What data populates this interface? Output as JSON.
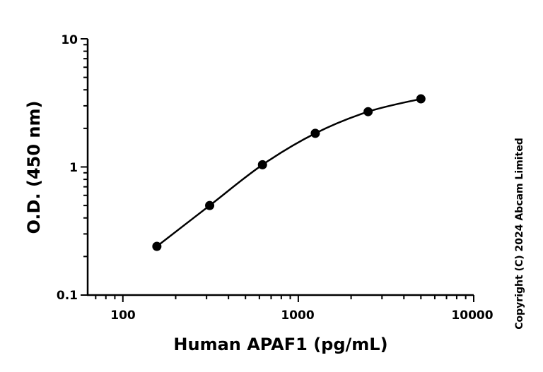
{
  "chart_data": {
    "type": "scatter",
    "xlabel": "Human APAF1 (pg/mL)",
    "ylabel": "O.D. (450 nm)",
    "x_scale": "log",
    "y_scale": "log",
    "xlim": [
      63,
      10000
    ],
    "ylim": [
      0.1,
      10
    ],
    "x_ticks": [
      "100",
      "1000",
      "10000"
    ],
    "y_ticks": [
      "0.1",
      "1",
      "10"
    ],
    "grid": false,
    "series": [
      {
        "x": [
          156.25,
          312.5,
          625,
          1250,
          2500,
          5000
        ],
        "y": [
          0.24,
          0.5,
          1.04,
          1.83,
          2.7,
          3.4
        ],
        "fit_curve": true
      }
    ],
    "annotation": "Copyright (C) 2024 Abcam Limited"
  }
}
